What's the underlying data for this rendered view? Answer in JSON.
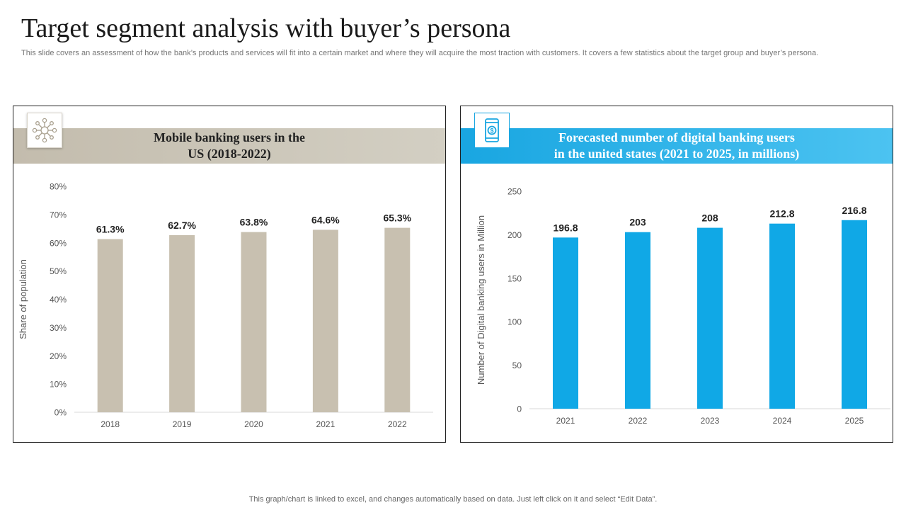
{
  "title": "Target segment analysis with buyer’s persona",
  "subtitle": "This slide covers an assessment of how the bank’s products and services will fit into a certain market and where they will acquire the most traction with customers. It covers a few statistics about the target group and buyer’s persona.",
  "footer": "This graph/chart is linked to excel, and changes automatically based on data. Just left click on it and select “Edit Data”.",
  "panels": {
    "left": {
      "heading_line1": "Mobile banking users in the",
      "heading_line2": "US (2018-2022)",
      "icon": "network-people-icon"
    },
    "right": {
      "heading_line1": "Forecasted number of digital banking users",
      "heading_line2": "in the united states (2021 to 2025, in millions)",
      "icon": "mobile-banking-icon"
    }
  },
  "colors": {
    "beige_bar": "#c8c0b0",
    "blue_bar": "#10a8e6",
    "axis_text": "#555555",
    "value_text": "#222222"
  },
  "chart_data": [
    {
      "type": "bar",
      "title": "Mobile banking users in the US (2018-2022)",
      "categories": [
        "2018",
        "2019",
        "2020",
        "2021",
        "2022"
      ],
      "values": [
        61.3,
        62.7,
        63.8,
        64.6,
        65.3
      ],
      "value_labels": [
        "61.3%",
        "62.7%",
        "63.8%",
        "64.6%",
        "65.3%"
      ],
      "ylabel": "Share of population",
      "xlabel": "",
      "ylim": [
        0,
        80
      ],
      "yticks": [
        0,
        10,
        20,
        30,
        40,
        50,
        60,
        70,
        80
      ],
      "ytick_labels": [
        "0%",
        "10%",
        "20%",
        "30%",
        "40%",
        "50%",
        "60%",
        "70%",
        "80%"
      ],
      "grid": false
    },
    {
      "type": "bar",
      "title": "Forecasted number of digital banking users in the united states (2021 to 2025, in millions)",
      "categories": [
        "2021",
        "2022",
        "2023",
        "2024",
        "2025"
      ],
      "values": [
        196.8,
        203,
        208,
        212.8,
        216.8
      ],
      "value_labels": [
        "196.8",
        "203",
        "208",
        "212.8",
        "216.8"
      ],
      "ylabel": "Number of Digital banking  users in Million",
      "xlabel": "",
      "ylim": [
        0,
        250
      ],
      "yticks": [
        0,
        50,
        100,
        150,
        200,
        250
      ],
      "ytick_labels": [
        "0",
        "50",
        "100",
        "150",
        "200",
        "250"
      ],
      "grid": false
    }
  ]
}
